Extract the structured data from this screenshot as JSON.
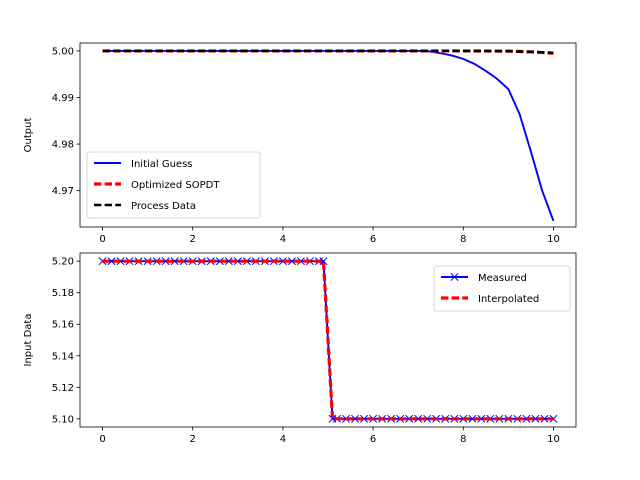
{
  "chart_data": [
    {
      "type": "line",
      "ylabel": "Output",
      "xlabel": "",
      "xlim": [
        -0.5,
        10.5
      ],
      "ylim": [
        4.9622,
        5.0017
      ],
      "xticks": [
        0,
        2,
        4,
        6,
        8,
        10
      ],
      "yticks": [
        4.97,
        4.98,
        4.99,
        5.0
      ],
      "ytick_labels": [
        "4.97",
        "4.98",
        "4.99",
        "5.00"
      ],
      "legend": "lower-left",
      "series": [
        {
          "name": "Initial Guess",
          "color": "#0000ff",
          "style": "solid",
          "x": [
            0,
            1,
            2,
            3,
            4,
            5,
            6,
            7,
            7.25,
            7.5,
            7.75,
            8,
            8.25,
            8.5,
            8.75,
            9,
            9.25,
            9.5,
            9.75,
            10
          ],
          "y": [
            5.0,
            5.0,
            5.0,
            5.0,
            5.0,
            5.0,
            5.0,
            5.0,
            4.9999,
            4.9995,
            4.999,
            4.9983,
            4.9972,
            4.9957,
            4.994,
            4.9918,
            4.9864,
            4.9784,
            4.97,
            4.9635
          ]
        },
        {
          "name": "Optimized SOPDT",
          "color": "#ff0000",
          "style": "dashed",
          "x": [
            0,
            1,
            2,
            3,
            4,
            5,
            6,
            7,
            8,
            9,
            9.5,
            10
          ],
          "y": [
            5.0,
            5.0,
            5.0,
            5.0,
            5.0,
            5.0,
            5.0,
            5.0,
            5.0,
            4.99995,
            4.9998,
            4.9995
          ]
        },
        {
          "name": "Process Data",
          "color": "#000000",
          "style": "dashed",
          "x": [
            0,
            1,
            2,
            3,
            4,
            5,
            6,
            7,
            8,
            9,
            9.5,
            10
          ],
          "y": [
            5.0,
            5.0,
            5.0,
            5.0,
            5.0,
            5.0,
            5.0,
            5.0,
            5.0,
            4.99995,
            4.9998,
            4.9996
          ]
        }
      ]
    },
    {
      "type": "line",
      "ylabel": "Input Data",
      "xlabel": "",
      "xlim": [
        -0.5,
        10.5
      ],
      "ylim": [
        5.0948,
        5.2052
      ],
      "xticks": [
        0,
        2,
        4,
        6,
        8,
        10
      ],
      "yticks": [
        5.1,
        5.12,
        5.14,
        5.16,
        5.18,
        5.2
      ],
      "ytick_labels": [
        "5.10",
        "5.12",
        "5.14",
        "5.16",
        "5.18",
        "5.20"
      ],
      "legend": "upper-right",
      "series": [
        {
          "name": "Measured",
          "color": "#0000ff",
          "style": "solid",
          "marker": "x",
          "x": [
            0,
            0.2,
            0.4,
            0.6,
            0.8,
            1.0,
            1.2,
            1.4,
            1.6,
            1.8,
            2.0,
            2.2,
            2.4,
            2.6,
            2.8,
            3.0,
            3.2,
            3.4,
            3.6,
            3.8,
            4.0,
            4.2,
            4.4,
            4.6,
            4.8,
            4.9,
            5.1,
            5.2,
            5.4,
            5.6,
            5.8,
            6.0,
            6.2,
            6.4,
            6.6,
            6.8,
            7.0,
            7.2,
            7.4,
            7.6,
            7.8,
            8.0,
            8.2,
            8.4,
            8.6,
            8.8,
            9.0,
            9.2,
            9.4,
            9.6,
            9.8,
            10.0
          ],
          "y": [
            5.2,
            5.2,
            5.2,
            5.2,
            5.2,
            5.2,
            5.2,
            5.2,
            5.2,
            5.2,
            5.2,
            5.2,
            5.2,
            5.2,
            5.2,
            5.2,
            5.2,
            5.2,
            5.2,
            5.2,
            5.2,
            5.2,
            5.2,
            5.2,
            5.2,
            5.2,
            5.1,
            5.1,
            5.1,
            5.1,
            5.1,
            5.1,
            5.1,
            5.1,
            5.1,
            5.1,
            5.1,
            5.1,
            5.1,
            5.1,
            5.1,
            5.1,
            5.1,
            5.1,
            5.1,
            5.1,
            5.1,
            5.1,
            5.1,
            5.1,
            5.1,
            5.1
          ]
        },
        {
          "name": "Interpolated",
          "color": "#ff0000",
          "style": "dashed",
          "x": [
            0,
            4.9,
            5.1,
            10
          ],
          "y": [
            5.2,
            5.2,
            5.1,
            5.1
          ]
        }
      ]
    }
  ]
}
